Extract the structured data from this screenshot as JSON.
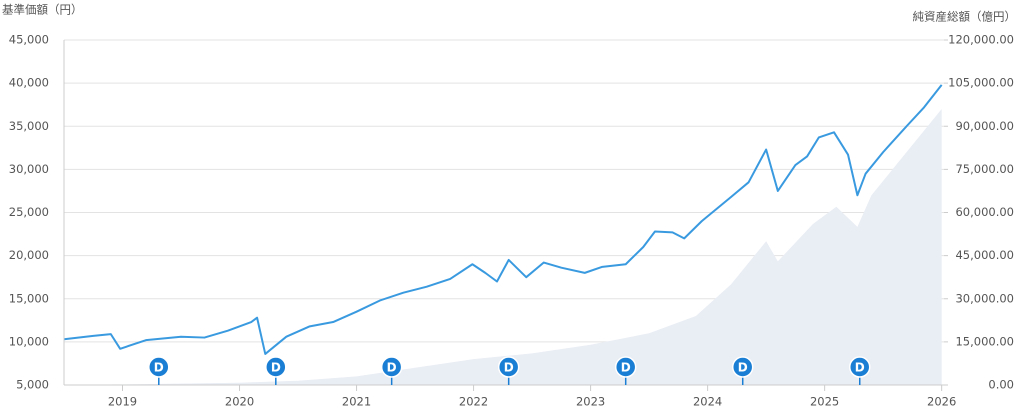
{
  "chart_data": {
    "type": "line-area",
    "y_axis_title": "基準価額（円）",
    "y2_axis_title": "純資産総額（億円）",
    "xlim": [
      2018.5,
      2026.02
    ],
    "xticks": [
      2019,
      2020,
      2021,
      2022,
      2023,
      2024,
      2025,
      2026
    ],
    "ylim": [
      5000,
      45000
    ],
    "yticks": [
      {
        "value": 5000,
        "label": "5,000"
      },
      {
        "value": 10000,
        "label": "10,000"
      },
      {
        "value": 15000,
        "label": "15,000"
      },
      {
        "value": 20000,
        "label": "20,000"
      },
      {
        "value": 25000,
        "label": "25,000"
      },
      {
        "value": 30000,
        "label": "30,000"
      },
      {
        "value": 35000,
        "label": "35,000"
      },
      {
        "value": 40000,
        "label": "40,000"
      },
      {
        "value": 45000,
        "label": "45,000"
      }
    ],
    "y2lim": [
      0,
      120000
    ],
    "y2ticks": [
      {
        "value": 0,
        "label": "0.00"
      },
      {
        "value": 15000,
        "label": "15,000.00"
      },
      {
        "value": 30000,
        "label": "30,000.00"
      },
      {
        "value": 45000,
        "label": "45,000.00"
      },
      {
        "value": 60000,
        "label": "60,000.00"
      },
      {
        "value": 75000,
        "label": "75,000.00"
      },
      {
        "value": 90000,
        "label": "90,000.00"
      },
      {
        "value": 105000,
        "label": "105,000.00"
      },
      {
        "value": 120000,
        "label": "120,000.00"
      }
    ],
    "grid": true,
    "series": [
      {
        "color": "#3a9ae0",
        "kind": "line",
        "x": [
          2018.5,
          2018.75,
          2018.9,
          2018.98,
          2019.2,
          2019.5,
          2019.7,
          2019.9,
          2020.1,
          2020.15,
          2020.22,
          2020.4,
          2020.6,
          2020.8,
          2021.0,
          2021.2,
          2021.4,
          2021.6,
          2021.8,
          2021.99,
          2022.1,
          2022.2,
          2022.3,
          2022.45,
          2022.6,
          2022.75,
          2022.95,
          2023.1,
          2023.3,
          2023.45,
          2023.55,
          2023.7,
          2023.8,
          2023.95,
          2024.2,
          2024.35,
          2024.5,
          2024.6,
          2024.75,
          2024.85,
          2024.95,
          2025.08,
          2025.2,
          2025.28,
          2025.35,
          2025.5,
          2025.7,
          2025.85,
          2026.0
        ],
        "values": [
          10300,
          10700,
          10900,
          9200,
          10200,
          10600,
          10500,
          11300,
          12300,
          12800,
          8600,
          10600,
          11800,
          12300,
          13500,
          14800,
          15700,
          16400,
          17300,
          19000,
          18000,
          17000,
          19500,
          17500,
          19200,
          18600,
          18000,
          18700,
          19000,
          21000,
          22800,
          22700,
          22000,
          24000,
          26800,
          28500,
          32300,
          27500,
          30500,
          31500,
          33700,
          34300,
          31700,
          27000,
          29500,
          32000,
          35000,
          37200,
          39800
        ]
      },
      {
        "color": "#e9edf4",
        "kind": "area",
        "axis": "y2",
        "x": [
          2018.5,
          2019.0,
          2020.0,
          2020.5,
          2021.0,
          2021.5,
          2022.0,
          2022.5,
          2023.0,
          2023.5,
          2023.9,
          2024.2,
          2024.5,
          2024.6,
          2024.9,
          2025.1,
          2025.28,
          2025.4,
          2025.6,
          2025.8,
          2026.0
        ],
        "values": [
          50,
          200,
          800,
          1500,
          3000,
          6000,
          9000,
          11000,
          14000,
          18000,
          24000,
          35000,
          50000,
          43000,
          56000,
          62000,
          55000,
          66000,
          76000,
          86000,
          96000
        ]
      }
    ],
    "dividend_markers": [
      {
        "x": 2019.31,
        "label": "D"
      },
      {
        "x": 2020.31,
        "label": "D"
      },
      {
        "x": 2021.3,
        "label": "D"
      },
      {
        "x": 2022.3,
        "label": "D"
      },
      {
        "x": 2023.3,
        "label": "D"
      },
      {
        "x": 2024.3,
        "label": "D"
      },
      {
        "x": 2025.3,
        "label": "D"
      }
    ]
  }
}
